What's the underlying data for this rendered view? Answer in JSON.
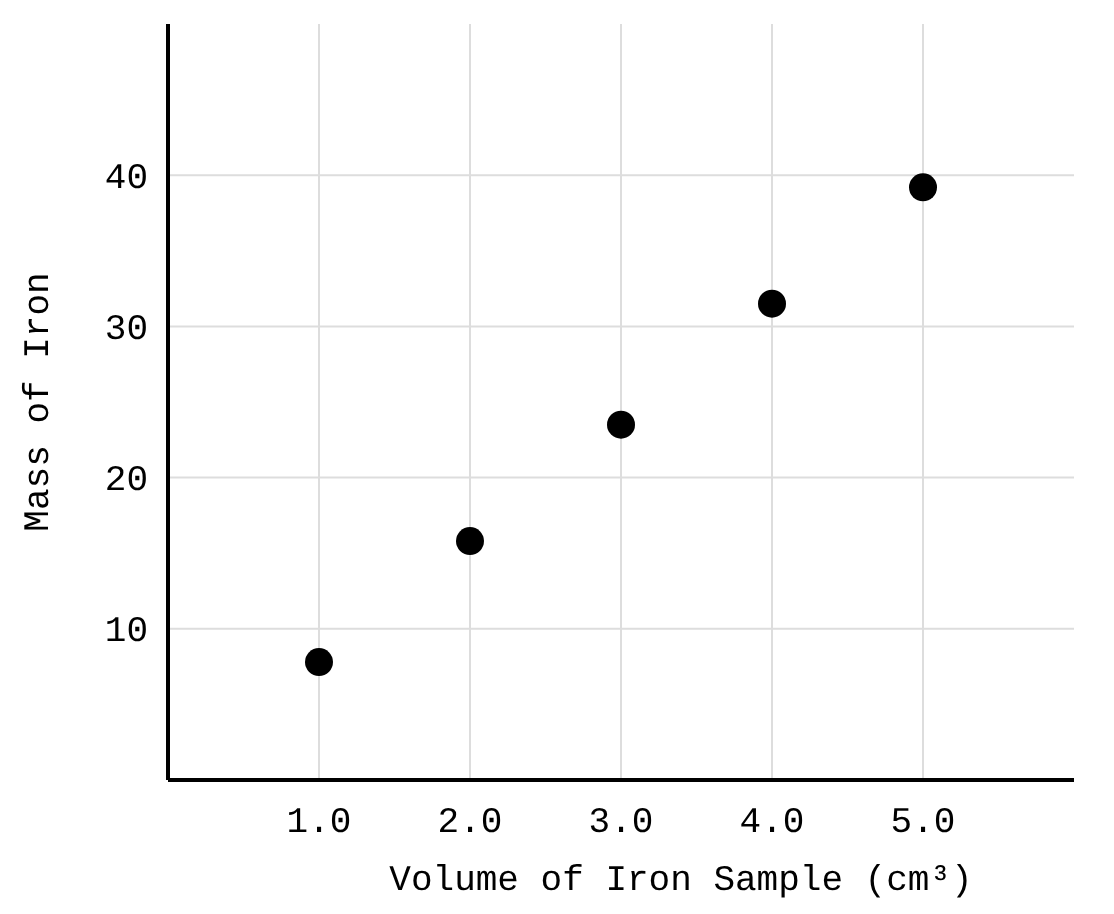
{
  "chart_data": {
    "type": "scatter",
    "xlabel": "Volume of Iron Sample (cm³)",
    "ylabel": "Mass of Iron",
    "x": [
      1,
      2,
      3,
      4,
      5
    ],
    "series": [
      {
        "color": "#000000",
        "values": [
          7.8,
          15.8,
          23.5,
          31.5,
          39.2
        ]
      }
    ],
    "xlim": [
      0,
      6
    ],
    "xticks": [
      {
        "value": 1,
        "label": "1.0"
      },
      {
        "value": 2,
        "label": "2.0"
      },
      {
        "value": 3,
        "label": "3.0"
      },
      {
        "value": 4,
        "label": "4.0"
      },
      {
        "value": 5,
        "label": "5.0"
      }
    ],
    "ylim": [
      0,
      50
    ],
    "yticks": [
      10,
      20,
      30,
      40
    ],
    "grid": true,
    "marker": "circle"
  }
}
